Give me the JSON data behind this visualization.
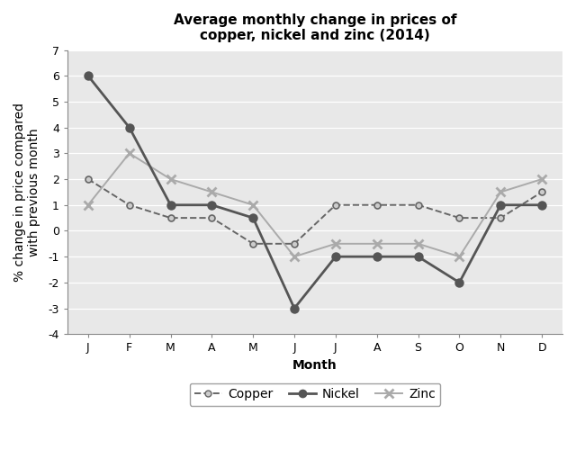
{
  "title": "Average monthly change in prices of\ncopper, nickel and zinc (2014)",
  "xlabel": "Month",
  "ylabel": "% change in price compared\nwith previous month",
  "months": [
    "J",
    "F",
    "M",
    "A",
    "M",
    "J",
    "J",
    "A",
    "S",
    "O",
    "N",
    "D"
  ],
  "copper": [
    2,
    1,
    0.5,
    0.5,
    -0.5,
    -0.5,
    1,
    1,
    1,
    0.5,
    0.5,
    1.5
  ],
  "nickel": [
    6,
    4,
    1,
    1,
    0.5,
    -3,
    -1,
    -1,
    -1,
    -2,
    1,
    1
  ],
  "zinc": [
    1,
    3,
    2,
    1.5,
    1,
    -1,
    -0.5,
    -0.5,
    -0.5,
    -1,
    1.5,
    2
  ],
  "ylim": [
    -4,
    7
  ],
  "yticks": [
    -4,
    -3,
    -2,
    -1,
    0,
    1,
    2,
    3,
    4,
    5,
    6,
    7
  ],
  "copper_color": "#666666",
  "nickel_color": "#555555",
  "zinc_color": "#aaaaaa",
  "grid_color": "#cccccc",
  "plot_bg": "#e8e8e8",
  "title_fontsize": 11,
  "label_fontsize": 10,
  "tick_fontsize": 9,
  "legend_fontsize": 10
}
